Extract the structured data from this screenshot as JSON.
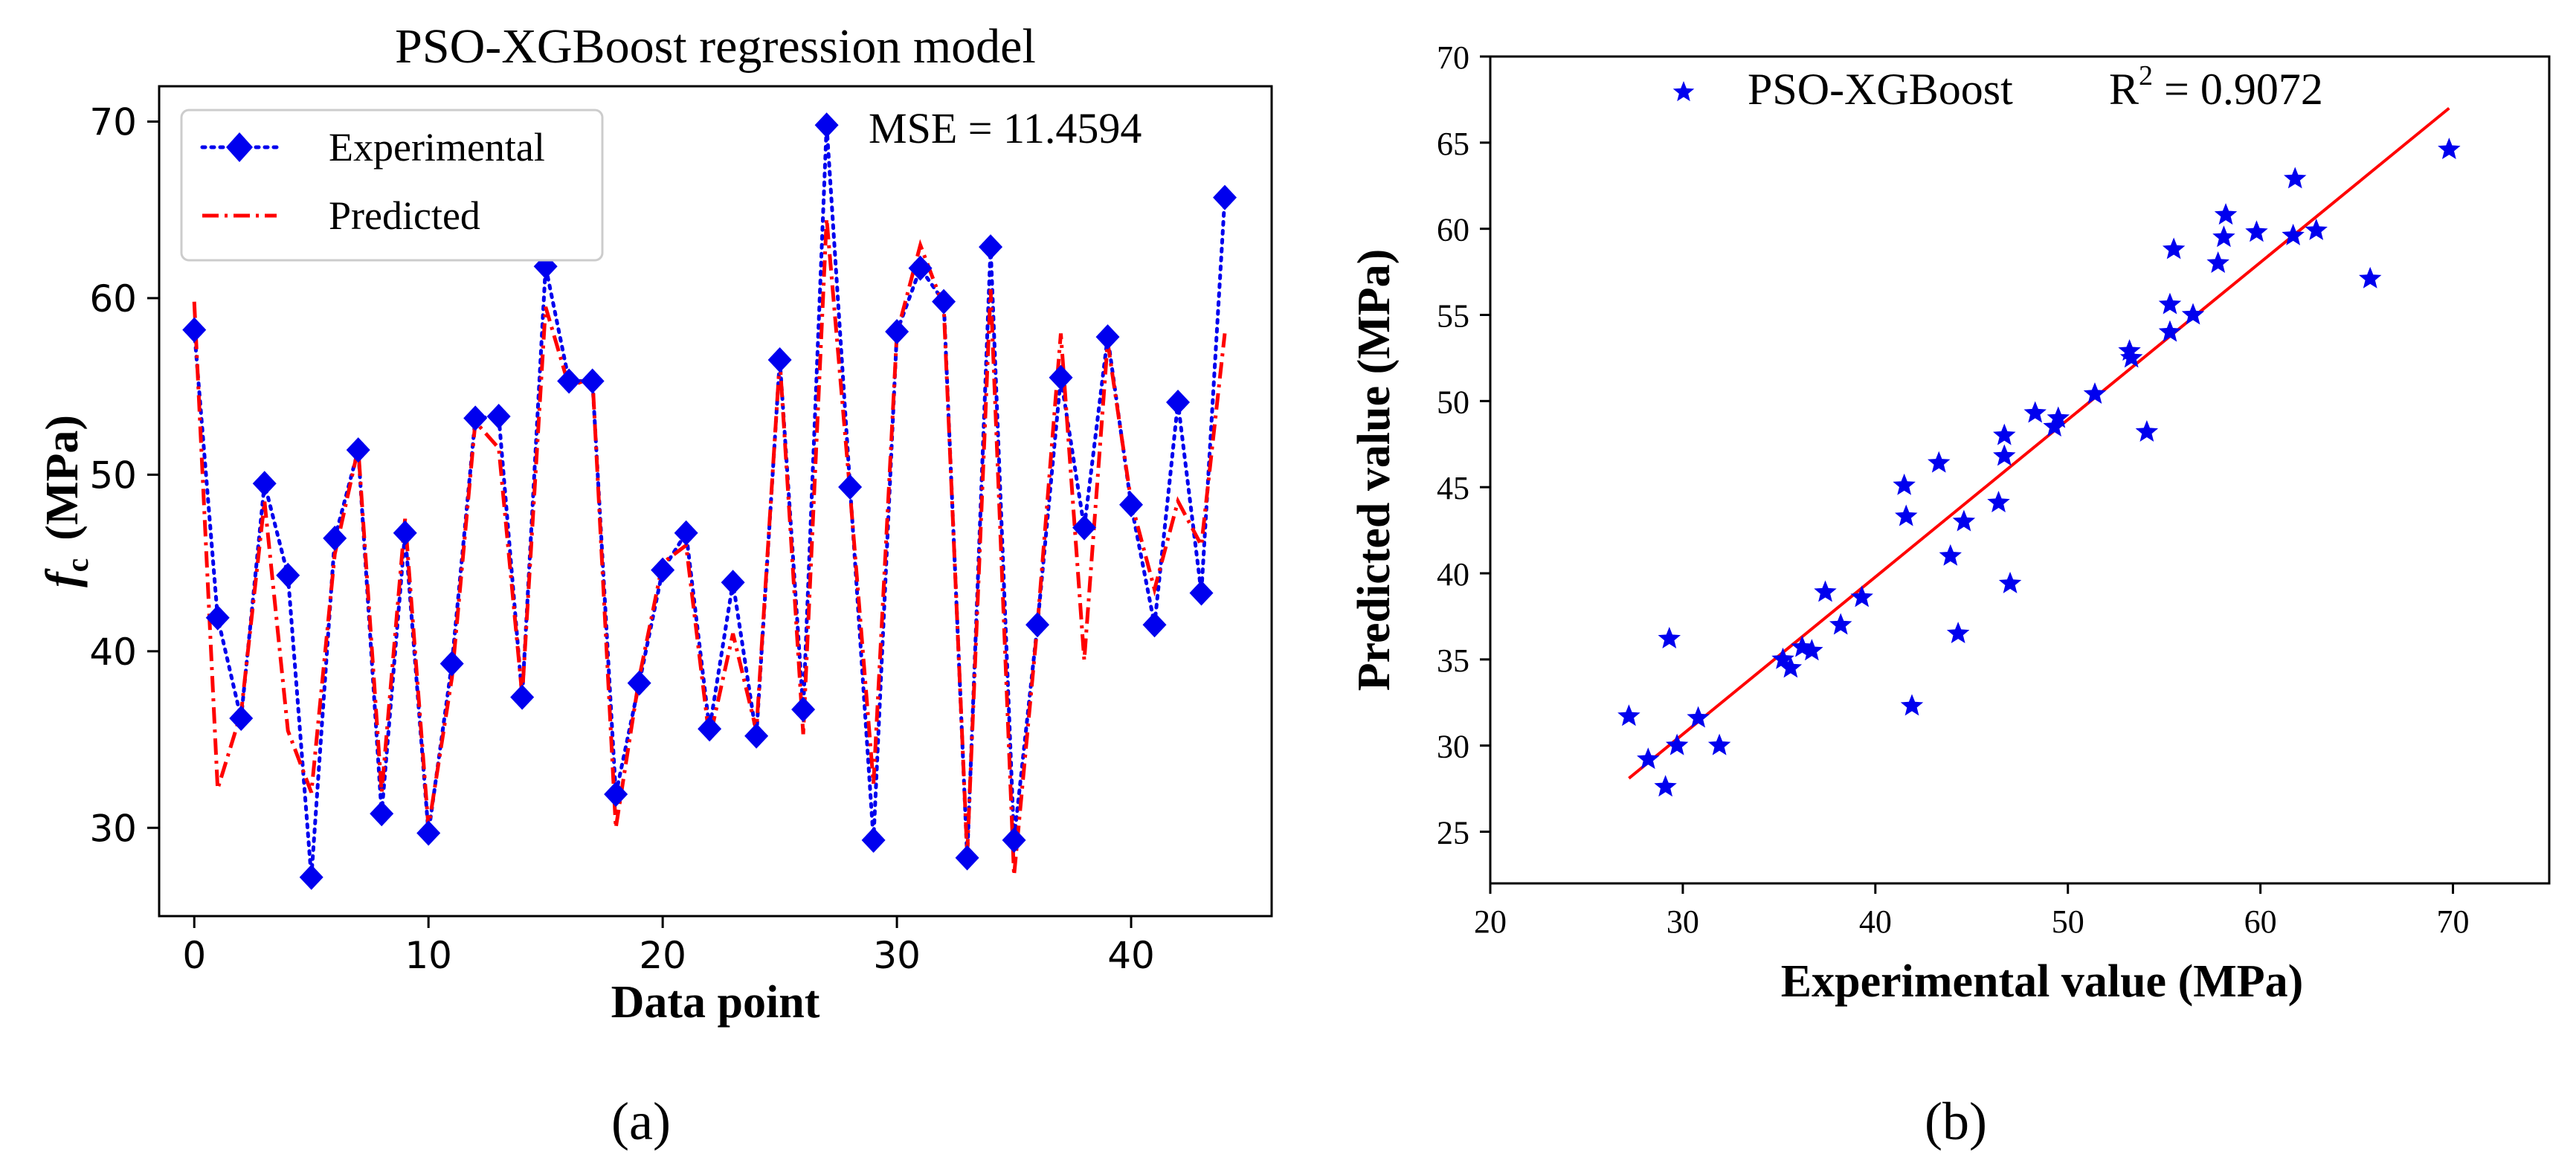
{
  "colors": {
    "experimental": "#0000ee",
    "predicted": "#ff0000",
    "axis": "#000000",
    "legend_border": "#cccccc"
  },
  "chart_data": [
    {
      "type": "line",
      "title": "PSO-XGBoost regression model",
      "xlabel": "Data point",
      "ylabel_main": "f",
      "ylabel_sub": "c",
      "ylabel_unit": "(MPa)",
      "xlim": [
        -1.5,
        46
      ],
      "ylim": [
        25,
        72
      ],
      "xticks": [
        0,
        10,
        20,
        30,
        40
      ],
      "yticks": [
        30,
        40,
        50,
        60,
        70
      ],
      "annotation": "MSE = 11.4594",
      "panel_label": "(a)",
      "x": [
        0,
        1,
        2,
        3,
        4,
        5,
        6,
        7,
        8,
        9,
        10,
        11,
        12,
        13,
        14,
        15,
        16,
        17,
        18,
        19,
        20,
        21,
        22,
        23,
        24,
        25,
        26,
        27,
        28,
        29,
        30,
        31,
        32,
        33,
        34,
        35,
        36,
        37,
        38,
        39,
        40,
        41,
        42,
        43,
        44
      ],
      "series": [
        {
          "name": "Experimental",
          "values": [
            58.2,
            41.9,
            36.2,
            49.5,
            44.3,
            27.2,
            46.4,
            51.4,
            30.8,
            46.7,
            29.7,
            39.3,
            53.2,
            53.3,
            37.4,
            61.8,
            55.3,
            55.3,
            31.9,
            38.2,
            44.6,
            46.7,
            35.6,
            43.9,
            35.2,
            56.5,
            36.7,
            69.8,
            49.3,
            29.3,
            58.1,
            61.7,
            59.8,
            28.3,
            62.9,
            29.3,
            41.5,
            55.5,
            47.0,
            57.8,
            48.3,
            41.5,
            54.1,
            43.3,
            65.7
          ]
        },
        {
          "name": "Predicted",
          "values": [
            59.8,
            32.2,
            36.5,
            48.5,
            35.5,
            32.0,
            45.5,
            51.5,
            32.0,
            47.5,
            30.0,
            38.5,
            53.0,
            51.5,
            37.5,
            59.5,
            55.0,
            55.5,
            30.0,
            38.5,
            45.0,
            46.0,
            35.0,
            41.0,
            35.5,
            56.5,
            35.3,
            64.5,
            49.0,
            32.5,
            58.0,
            63.0,
            59.5,
            28.5,
            60.5,
            27.3,
            41.5,
            58.0,
            39.5,
            57.5,
            48.5,
            43.5,
            48.5,
            46.0,
            58.0
          ]
        }
      ]
    },
    {
      "type": "scatter",
      "title": "",
      "xlabel": "Experimental value (MPa)",
      "ylabel": "Predicted value (MPa)",
      "xlim": [
        20,
        75
      ],
      "ylim": [
        22,
        70
      ],
      "xticks": [
        20,
        30,
        40,
        50,
        60,
        70
      ],
      "yticks": [
        25,
        30,
        35,
        40,
        45,
        50,
        55,
        60,
        65,
        70
      ],
      "legend_label": "PSO-XGBoost",
      "r2_text": "R",
      "r2_sup": "2",
      "r2_value": " = 0.9072",
      "panel_label": "(b)",
      "fit_line": {
        "x": [
          27.2,
          69.8
        ],
        "y": [
          28.1,
          67.0
        ]
      },
      "points": [
        [
          27.2,
          31.7
        ],
        [
          28.2,
          29.2
        ],
        [
          29.1,
          27.6
        ],
        [
          29.3,
          36.2
        ],
        [
          29.7,
          30.0
        ],
        [
          30.8,
          31.6
        ],
        [
          31.9,
          30.0
        ],
        [
          35.2,
          35.0
        ],
        [
          35.6,
          34.5
        ],
        [
          36.2,
          35.7
        ],
        [
          36.7,
          35.5
        ],
        [
          37.4,
          38.9
        ],
        [
          38.2,
          37.0
        ],
        [
          39.3,
          38.6
        ],
        [
          41.5,
          45.1
        ],
        [
          41.6,
          43.3
        ],
        [
          41.9,
          32.3
        ],
        [
          43.3,
          46.4
        ],
        [
          43.9,
          41.0
        ],
        [
          44.3,
          36.5
        ],
        [
          44.6,
          43.0
        ],
        [
          46.4,
          44.1
        ],
        [
          46.7,
          46.8
        ],
        [
          46.7,
          48.0
        ],
        [
          47.0,
          39.4
        ],
        [
          48.3,
          49.3
        ],
        [
          49.3,
          48.5
        ],
        [
          49.5,
          49.0
        ],
        [
          51.4,
          50.4
        ],
        [
          53.2,
          52.9
        ],
        [
          53.3,
          52.5
        ],
        [
          54.1,
          48.2
        ],
        [
          55.3,
          54.0
        ],
        [
          55.3,
          55.6
        ],
        [
          55.5,
          58.8
        ],
        [
          56.5,
          55.0
        ],
        [
          57.8,
          58.0
        ],
        [
          58.1,
          59.5
        ],
        [
          58.2,
          60.8
        ],
        [
          59.8,
          59.8
        ],
        [
          61.7,
          59.6
        ],
        [
          61.8,
          62.9
        ],
        [
          62.9,
          59.9
        ],
        [
          65.7,
          57.1
        ],
        [
          69.8,
          64.6
        ]
      ]
    }
  ]
}
